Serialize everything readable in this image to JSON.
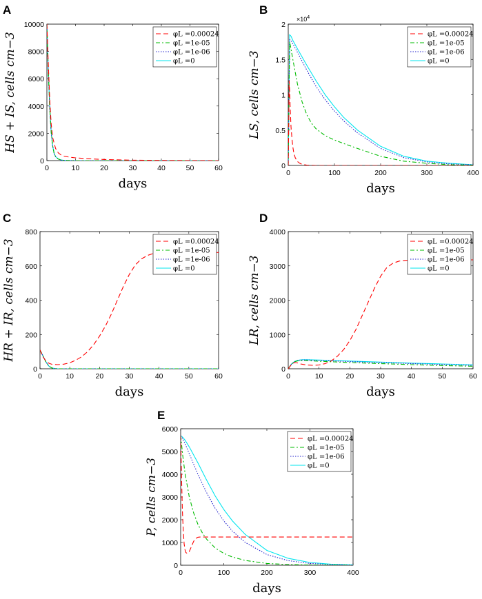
{
  "colors": {
    "series": [
      "#ff0000",
      "#00bb00",
      "#2222cc",
      "#00e5ee"
    ]
  },
  "legend_labels": [
    "φL =0.00024",
    "φL =1e-05",
    "φL =1e-06",
    "φL =0"
  ],
  "chart_data": [
    {
      "panel": "A",
      "type": "line",
      "xlabel": "days",
      "ylabel": "HS + IS, cells cm−3",
      "xlim": [
        0,
        60
      ],
      "ylim": [
        0,
        10000
      ],
      "xticks": [
        0,
        10,
        20,
        30,
        40,
        50,
        60
      ],
      "yticks": [
        0,
        2000,
        4000,
        6000,
        8000,
        10000
      ],
      "series": [
        {
          "name": "φL =0.00024",
          "x": [
            0,
            0.5,
            1,
            1.5,
            2,
            3,
            4,
            5,
            6,
            8,
            10,
            15,
            20,
            30,
            40,
            50,
            60
          ],
          "y": [
            10000,
            7000,
            4400,
            2700,
            1700,
            900,
            560,
            410,
            330,
            250,
            200,
            130,
            80,
            30,
            15,
            5,
            0
          ]
        },
        {
          "name": "φL =1e-05",
          "x": [
            0,
            0.5,
            1,
            1.5,
            2,
            2.5,
            3,
            4,
            5,
            6,
            8,
            10,
            60
          ],
          "y": [
            10000,
            6500,
            3800,
            2100,
            1100,
            550,
            300,
            110,
            40,
            15,
            5,
            0,
            0
          ]
        },
        {
          "name": "φL =1e-06",
          "x": [
            0,
            0.5,
            1,
            1.5,
            2,
            2.5,
            3,
            4,
            5,
            6,
            8,
            10,
            60
          ],
          "y": [
            10000,
            6500,
            3800,
            2100,
            1100,
            550,
            300,
            110,
            40,
            15,
            5,
            0,
            0
          ]
        },
        {
          "name": "φL =0",
          "x": [
            0,
            0.5,
            1,
            1.5,
            2,
            2.5,
            3,
            4,
            5,
            6,
            8,
            10,
            60
          ],
          "y": [
            10000,
            6500,
            3800,
            2100,
            1100,
            550,
            300,
            110,
            40,
            15,
            5,
            0,
            0
          ]
        }
      ]
    },
    {
      "panel": "B",
      "type": "line",
      "xlabel": "days",
      "ylabel": "LS, cells cm−3",
      "exponent_label": "×10",
      "exponent_power": "4",
      "xlim": [
        0,
        400
      ],
      "ylim": [
        0,
        2
      ],
      "xticks": [
        0,
        100,
        200,
        300,
        400
      ],
      "yticks": [
        0,
        0.5,
        1,
        1.5,
        2
      ],
      "series": [
        {
          "name": "φL =0.00024",
          "x": [
            0,
            1,
            2,
            3,
            4,
            5,
            6,
            8,
            10,
            12,
            15,
            20,
            25,
            30,
            40,
            50,
            60,
            400
          ],
          "y": [
            0,
            0.55,
            1.2,
            1.05,
            0.85,
            0.68,
            0.55,
            0.38,
            0.26,
            0.18,
            0.11,
            0.055,
            0.03,
            0.015,
            0.005,
            0.002,
            0,
            0
          ]
        },
        {
          "name": "φL =1e-05",
          "x": [
            0,
            3,
            6,
            10,
            20,
            30,
            40,
            50,
            60,
            80,
            100,
            120,
            150,
            200,
            250,
            300,
            350,
            400
          ],
          "y": [
            0,
            1.75,
            1.65,
            1.5,
            1.15,
            0.9,
            0.72,
            0.6,
            0.52,
            0.42,
            0.36,
            0.31,
            0.24,
            0.13,
            0.06,
            0.03,
            0.01,
            0.005
          ]
        },
        {
          "name": "φL =1e-06",
          "x": [
            0,
            3,
            6,
            10,
            20,
            40,
            60,
            80,
            100,
            120,
            150,
            200,
            250,
            300,
            350,
            400
          ],
          "y": [
            0,
            1.78,
            1.77,
            1.72,
            1.6,
            1.35,
            1.12,
            0.93,
            0.77,
            0.63,
            0.46,
            0.24,
            0.11,
            0.05,
            0.02,
            0.01
          ]
        },
        {
          "name": "φL =0",
          "x": [
            0,
            3,
            6,
            10,
            20,
            40,
            60,
            80,
            100,
            120,
            150,
            200,
            250,
            300,
            350,
            400
          ],
          "y": [
            0,
            1.85,
            1.83,
            1.77,
            1.65,
            1.42,
            1.2,
            1.0,
            0.83,
            0.68,
            0.5,
            0.27,
            0.13,
            0.06,
            0.03,
            0.01
          ]
        }
      ]
    },
    {
      "panel": "C",
      "type": "line",
      "xlabel": "days",
      "ylabel": "HR + IR, cells cm−3",
      "xlim": [
        0,
        60
      ],
      "ylim": [
        0,
        800
      ],
      "xticks": [
        0,
        10,
        20,
        30,
        40,
        50,
        60
      ],
      "yticks": [
        0,
        200,
        400,
        600,
        800
      ],
      "series": [
        {
          "name": "φL =0.00024",
          "x": [
            0,
            1,
            2,
            3,
            4,
            6,
            8,
            10,
            12,
            14,
            16,
            18,
            20,
            22,
            24,
            26,
            28,
            30,
            32,
            34,
            36,
            38,
            40,
            45,
            50,
            55,
            60
          ],
          "y": [
            110,
            70,
            45,
            32,
            26,
            24,
            27,
            35,
            50,
            70,
            100,
            140,
            190,
            250,
            320,
            400,
            480,
            550,
            605,
            640,
            660,
            672,
            676,
            678,
            678,
            678,
            678
          ]
        },
        {
          "name": "φL =1e-05",
          "x": [
            0,
            1,
            2,
            3,
            4,
            5,
            6,
            60
          ],
          "y": [
            110,
            75,
            40,
            15,
            5,
            1,
            0,
            0
          ]
        },
        {
          "name": "φL =1e-06",
          "x": [
            0,
            1,
            2,
            3,
            4,
            5,
            6,
            60
          ],
          "y": [
            110,
            75,
            40,
            15,
            5,
            1,
            0,
            0
          ]
        },
        {
          "name": "φL =0",
          "x": [
            0,
            1,
            2,
            3,
            4,
            5,
            6,
            60
          ],
          "y": [
            110,
            75,
            40,
            15,
            5,
            1,
            0,
            0
          ]
        }
      ]
    },
    {
      "panel": "D",
      "type": "line",
      "xlabel": "days",
      "ylabel": "LR, cells cm−3",
      "xlim": [
        0,
        60
      ],
      "ylim": [
        0,
        4000
      ],
      "xticks": [
        0,
        10,
        20,
        30,
        40,
        50,
        60
      ],
      "yticks": [
        0,
        1000,
        2000,
        3000,
        4000
      ],
      "series": [
        {
          "name": "φL =0.00024",
          "x": [
            0,
            1,
            2,
            3,
            4,
            6,
            8,
            10,
            12,
            14,
            16,
            18,
            20,
            22,
            24,
            26,
            28,
            30,
            32,
            34,
            36,
            38,
            40,
            45,
            50,
            55,
            60
          ],
          "y": [
            0,
            120,
            180,
            170,
            140,
            110,
            100,
            110,
            150,
            230,
            370,
            560,
            820,
            1150,
            1550,
            1950,
            2350,
            2700,
            2950,
            3080,
            3140,
            3160,
            3170,
            3175,
            3175,
            3175,
            3175
          ]
        },
        {
          "name": "φL =1e-05",
          "x": [
            0,
            1,
            2,
            3,
            4,
            5,
            6,
            8,
            10,
            15,
            20,
            30,
            40,
            50,
            60
          ],
          "y": [
            0,
            130,
            200,
            230,
            240,
            240,
            238,
            230,
            220,
            200,
            180,
            150,
            120,
            95,
            75
          ]
        },
        {
          "name": "φL =1e-06",
          "x": [
            0,
            1,
            2,
            3,
            4,
            5,
            6,
            8,
            10,
            15,
            20,
            30,
            40,
            50,
            60
          ],
          "y": [
            0,
            130,
            205,
            240,
            255,
            258,
            257,
            252,
            245,
            228,
            210,
            180,
            150,
            125,
            100
          ]
        },
        {
          "name": "φL =0",
          "x": [
            0,
            1,
            2,
            3,
            4,
            5,
            6,
            8,
            10,
            15,
            20,
            30,
            40,
            50,
            60
          ],
          "y": [
            0,
            135,
            210,
            245,
            262,
            266,
            265,
            260,
            255,
            240,
            225,
            195,
            165,
            140,
            115
          ]
        }
      ]
    },
    {
      "panel": "E",
      "type": "line",
      "xlabel": "days",
      "ylabel": "P, cells cm−3",
      "xlim": [
        0,
        400
      ],
      "ylim": [
        0,
        6000
      ],
      "xticks": [
        0,
        100,
        200,
        300,
        400
      ],
      "yticks": [
        0,
        1000,
        2000,
        3000,
        4000,
        5000,
        6000
      ],
      "series": [
        {
          "name": "φL =0.00024",
          "x": [
            0,
            2,
            4,
            6,
            8,
            10,
            12,
            15,
            20,
            25,
            30,
            35,
            40,
            45,
            50,
            60,
            80,
            100,
            150,
            200,
            250,
            300,
            350,
            400
          ],
          "y": [
            5700,
            3800,
            2400,
            1500,
            950,
            680,
            560,
            520,
            600,
            820,
            1050,
            1180,
            1230,
            1240,
            1240,
            1240,
            1240,
            1240,
            1240,
            1240,
            1240,
            1240,
            1240,
            1240
          ]
        },
        {
          "name": "φL =1e-05",
          "x": [
            0,
            5,
            10,
            20,
            30,
            40,
            50,
            60,
            80,
            100,
            120,
            150,
            200,
            250,
            300,
            350,
            400
          ],
          "y": [
            5700,
            4800,
            4050,
            3000,
            2300,
            1800,
            1430,
            1150,
            760,
            520,
            360,
            210,
            80,
            30,
            10,
            5,
            0
          ]
        },
        {
          "name": "φL =1e-06",
          "x": [
            0,
            5,
            10,
            20,
            40,
            60,
            80,
            100,
            120,
            150,
            200,
            250,
            300,
            350,
            400
          ],
          "y": [
            5700,
            5550,
            5350,
            4900,
            4000,
            3200,
            2500,
            1950,
            1500,
            1000,
            470,
            200,
            80,
            30,
            10
          ]
        },
        {
          "name": "φL =0",
          "x": [
            0,
            5,
            10,
            20,
            40,
            60,
            80,
            100,
            120,
            150,
            200,
            250,
            300,
            350,
            400
          ],
          "y": [
            5700,
            5620,
            5500,
            5200,
            4500,
            3750,
            3050,
            2450,
            1950,
            1350,
            650,
            300,
            120,
            45,
            15
          ]
        }
      ]
    }
  ]
}
